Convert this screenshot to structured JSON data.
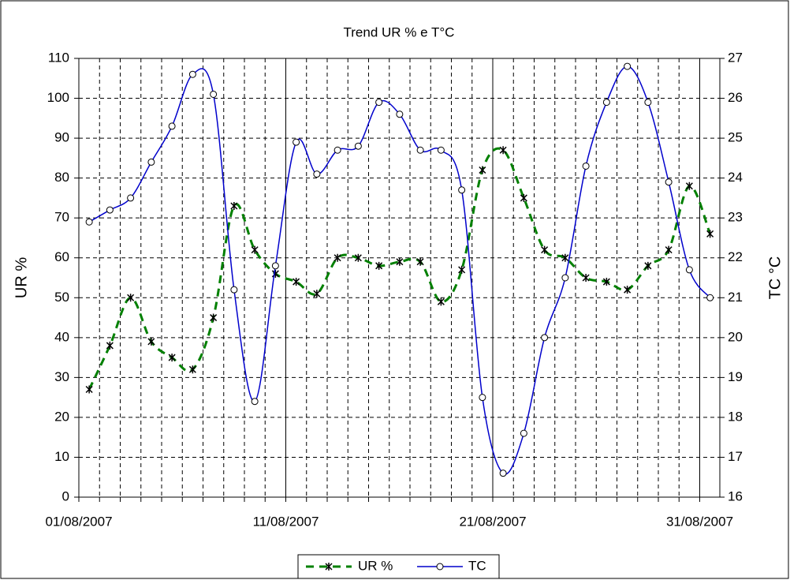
{
  "chart_data": {
    "type": "line",
    "title": "Trend UR % e T°C",
    "y_label": "UR %",
    "y2_label": "TC °C",
    "categories": [
      "01/08/2007",
      null,
      null,
      null,
      null,
      null,
      null,
      null,
      null,
      null,
      "11/08/2007",
      null,
      null,
      null,
      null,
      null,
      null,
      null,
      null,
      null,
      "21/08/2007",
      null,
      null,
      null,
      null,
      null,
      null,
      null,
      null,
      null,
      "31/08/2007"
    ],
    "series": [
      {
        "name": "UR %",
        "color": "#008000",
        "values": [
          27,
          38,
          50,
          39,
          35,
          32,
          45,
          73,
          62,
          56,
          54,
          51,
          60,
          60,
          58,
          59,
          59,
          49,
          57,
          82,
          87,
          75,
          62,
          60,
          55,
          54,
          52,
          58,
          62,
          78,
          66
        ]
      },
      {
        "name": "TC",
        "color": "#0000cc",
        "axis": "y2",
        "values": [
          22.9,
          23.2,
          23.5,
          24.4,
          25.3,
          26.6,
          26.1,
          21.2,
          18.4,
          21.8,
          24.9,
          24.1,
          24.7,
          24.8,
          25.9,
          25.6,
          24.7,
          24.7,
          23.7,
          18.5,
          16.6,
          17.6,
          20.0,
          21.5,
          24.3,
          25.9,
          26.8,
          25.9,
          23.9,
          21.7,
          21.0
        ]
      }
    ],
    "ylim": [
      0,
      110
    ],
    "yticks": [
      0,
      10,
      20,
      30,
      40,
      50,
      60,
      70,
      80,
      90,
      100,
      110
    ],
    "y2lim": [
      16,
      27
    ],
    "y2ticks": [
      16,
      17,
      18,
      19,
      20,
      21,
      22,
      23,
      24,
      25,
      26,
      27
    ],
    "grid": true,
    "legend": "bottom"
  }
}
